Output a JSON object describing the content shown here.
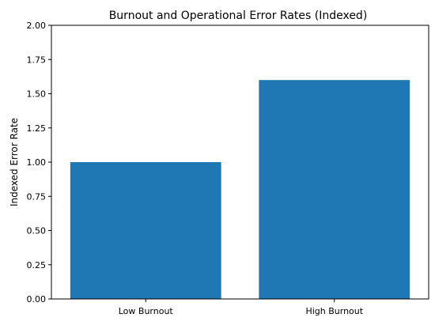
{
  "chart_data": {
    "type": "bar",
    "title": "Burnout and Operational Error Rates (Indexed)",
    "xlabel": "",
    "ylabel": "Indexed Error Rate",
    "categories": [
      "Low Burnout",
      "High Burnout"
    ],
    "values": [
      1.0,
      1.6
    ],
    "ylim": [
      0,
      2.0
    ],
    "yticks": [
      "0.00",
      "0.25",
      "0.50",
      "0.75",
      "1.00",
      "1.25",
      "1.50",
      "1.75",
      "2.00"
    ],
    "bar_color": "#1f77b4",
    "grid": false,
    "legend": "none"
  }
}
